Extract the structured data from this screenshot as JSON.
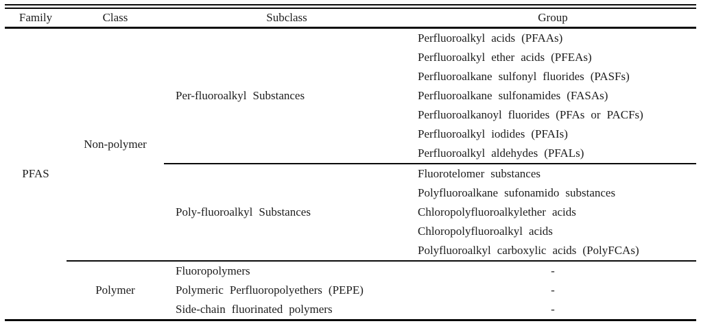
{
  "table": {
    "headers": {
      "family": "Family",
      "class": "Class",
      "subclass": "Subclass",
      "group": "Group"
    },
    "family": "PFAS",
    "non_polymer": {
      "label": "Non-polymer",
      "per": {
        "label": "Per-fluoroalkyl Substances",
        "groups": [
          "Perfluoroalkyl acids (PFAAs)",
          "Perfluoroalkyl ether acids (PFEAs)",
          "Perfluoroalkane sulfonyl fluorides (PASFs)",
          "Perfluoroalkane sulfonamides (FASAs)",
          "Perfluoroalkanoyl fluorides (PFAs or PACFs)",
          "Perfluoroalkyl iodides (PFAIs)",
          "Perfluoroalkyl aldehydes (PFALs)"
        ]
      },
      "poly": {
        "label": "Poly-fluoroalkyl Substances",
        "groups": [
          "Fluorotelomer substances",
          "Polyfluoroalkane sufonamido substances",
          "Chloropolyfluoroalkylether acids",
          "Chloropolyfluoroalkyl acids",
          "Polyfluoroalkyl carboxylic acids (PolyFCAs)"
        ]
      }
    },
    "polymer": {
      "label": "Polymer",
      "rows": [
        {
          "subclass": "Fluoropolymers",
          "group": "-"
        },
        {
          "subclass": "Polymeric Perfluoropolyethers (PEPE)",
          "group": "-"
        },
        {
          "subclass": "Side-chain fluorinated polymers",
          "group": "-"
        }
      ]
    }
  }
}
